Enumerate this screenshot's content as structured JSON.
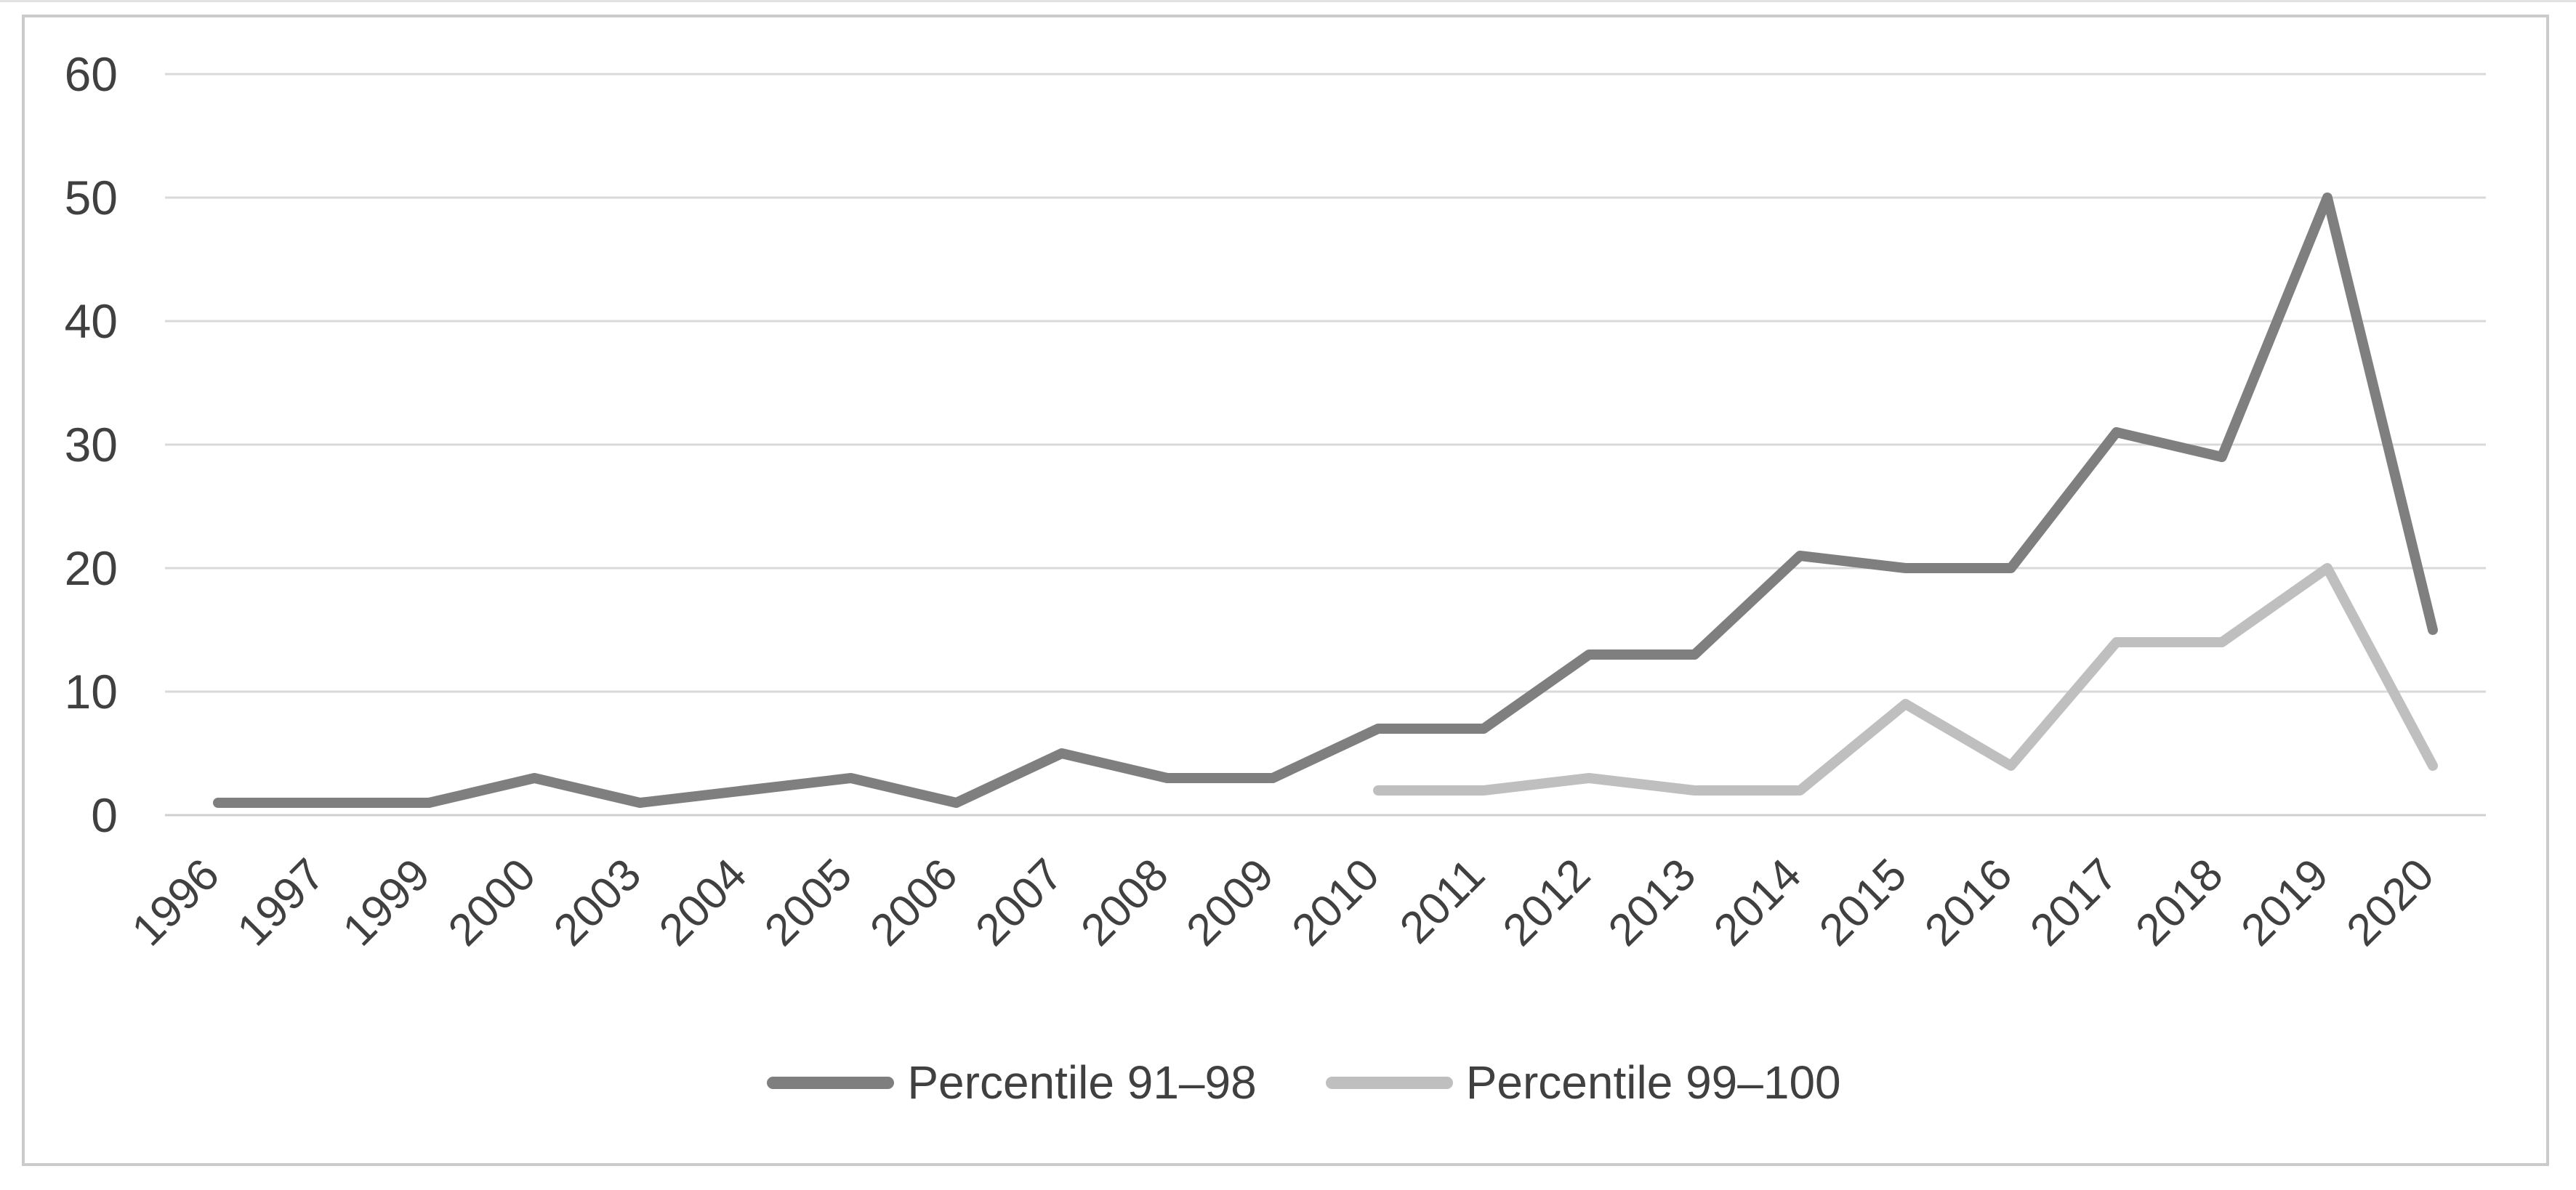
{
  "chart_data": {
    "type": "line",
    "title": "",
    "xlabel": "",
    "ylabel": "",
    "categories": [
      "1996",
      "1997",
      "1999",
      "2000",
      "2003",
      "2004",
      "2005",
      "2006",
      "2007",
      "2008",
      "2009",
      "2010",
      "2011",
      "2012",
      "2013",
      "2014",
      "2015",
      "2016",
      "2017",
      "2018",
      "2019",
      "2020"
    ],
    "series": [
      {
        "name": "Percentile 91–98",
        "color": "#7f7f7f",
        "values": [
          1,
          1,
          1,
          3,
          1,
          2,
          3,
          1,
          5,
          3,
          3,
          7,
          7,
          13,
          13,
          21,
          20,
          20,
          31,
          29,
          50,
          15
        ]
      },
      {
        "name": "Percentile 99–100",
        "color": "#bfbfbf",
        "values": [
          null,
          null,
          null,
          null,
          null,
          null,
          null,
          null,
          null,
          null,
          null,
          2,
          2,
          3,
          2,
          2,
          9,
          4,
          14,
          14,
          20,
          4
        ]
      }
    ],
    "y_axis": {
      "ticks": [
        0,
        10,
        20,
        30,
        40,
        50,
        60
      ],
      "range": [
        0,
        60
      ]
    },
    "x_axis": {
      "label_rotation_degrees": -45
    },
    "grid": true,
    "legend_position": "bottom-center"
  },
  "colors": {
    "gridline": "#d9d9d9",
    "axis_line": "#cfcfcf",
    "tick_text": "#404040",
    "frame_border": "#cbcbcb",
    "background": "#ffffff"
  }
}
